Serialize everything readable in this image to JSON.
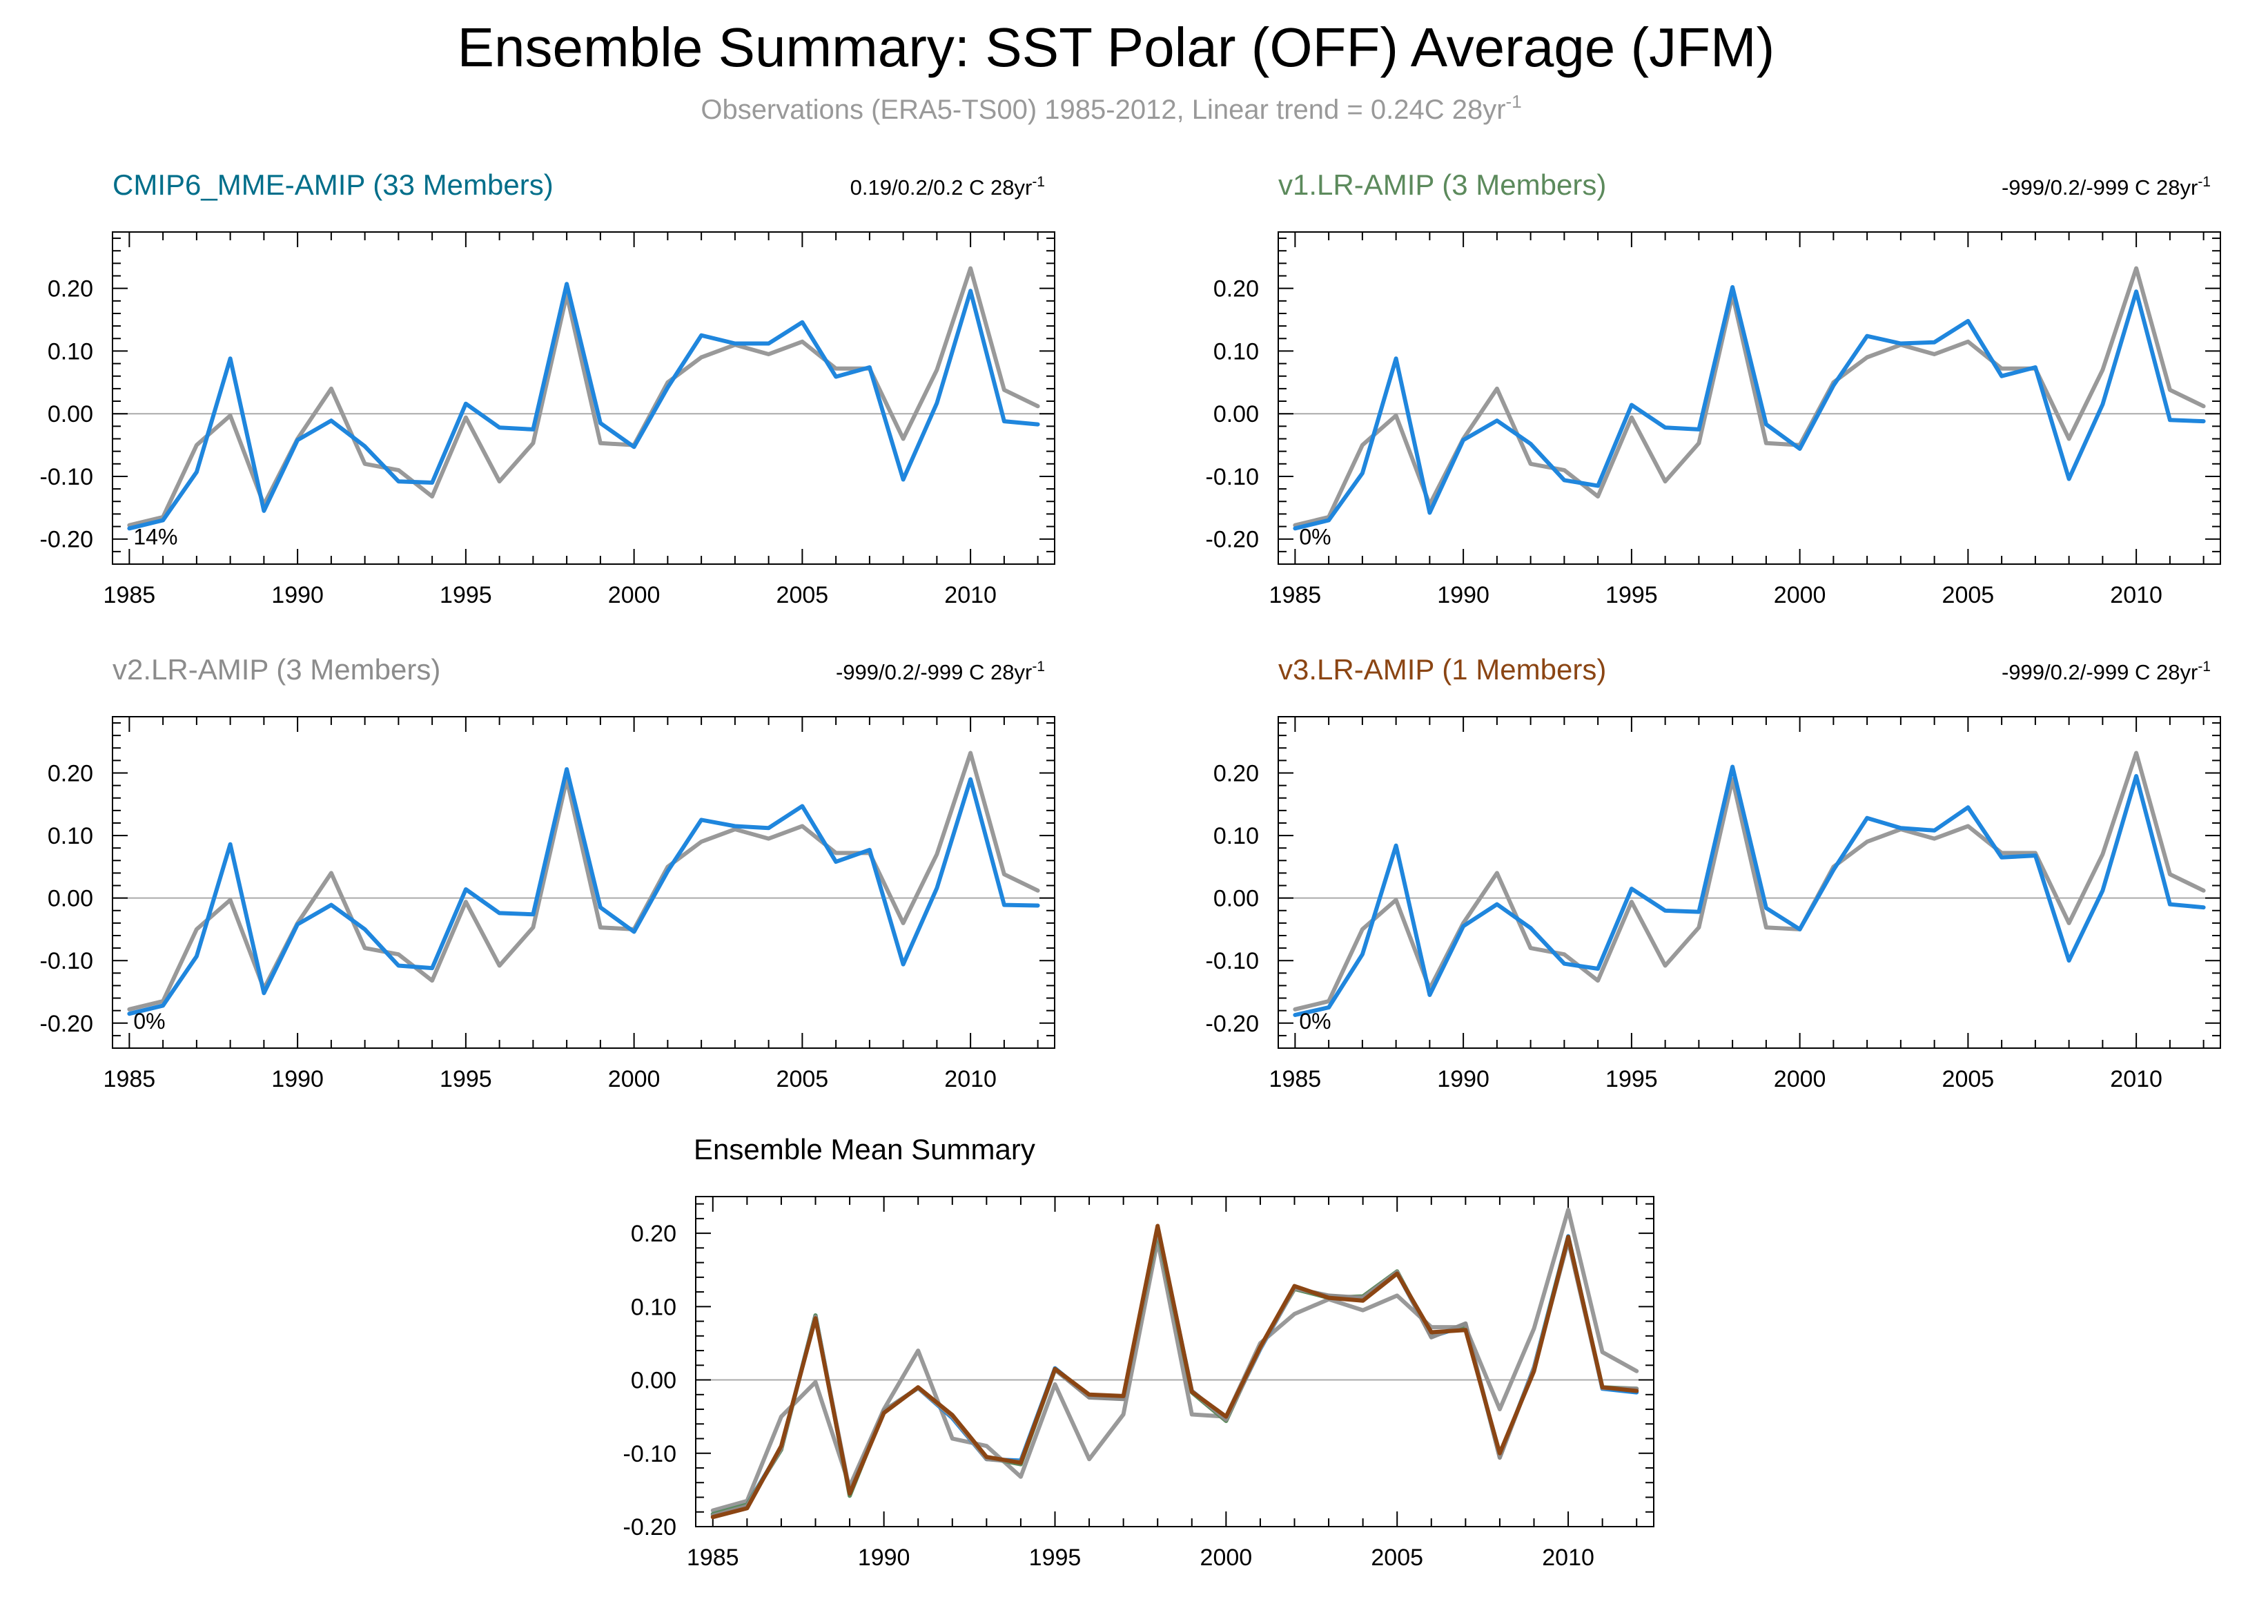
{
  "figure": {
    "title": "Ensemble Summary: SST Polar (OFF) Average (JFM)",
    "subtitle_main": "Observations (ERA5-TS00) 1985-2012, Linear trend = 0.24C 28yr",
    "subtitle_sup": "-1"
  },
  "colors": {
    "obs": "#999999",
    "model": "#1f86dd",
    "v3": "#8b4513",
    "cmip6_title": "#006e8a",
    "v1_title": "#5c8a5c",
    "v2_title": "#8c8c8c",
    "v3_title": "#8b4513",
    "mean_title": "#000000",
    "axis": "#000000",
    "zero_line": "#aaaaaa"
  },
  "chart_data": [
    {
      "type": "line",
      "id": "cmip6",
      "title": "CMIP6_MME-AMIP (33 Members)",
      "trend_label": "0.19/0.2/0.2 C 28yr",
      "trend_sup": "-1",
      "pct_label": "14%",
      "xlim": [
        1984.5,
        2012.5
      ],
      "ylim": [
        -0.24,
        0.29
      ],
      "xticks": [
        1985,
        1990,
        1995,
        2000,
        2005,
        2010
      ],
      "yticks": [
        -0.2,
        -0.1,
        0.0,
        0.1,
        0.2
      ],
      "ytick_labels": [
        "-0.20",
        "-0.10",
        "0.00",
        "0.10",
        "0.20"
      ],
      "xtick_labels": [
        "1985",
        "1990",
        "1995",
        "2000",
        "2005",
        "2010"
      ],
      "x": [
        1985,
        1986,
        1987,
        1988,
        1989,
        1990,
        1991,
        1992,
        1993,
        1994,
        1995,
        1996,
        1997,
        1998,
        1999,
        2000,
        2001,
        2002,
        2003,
        2004,
        2005,
        2006,
        2007,
        2008,
        2009,
        2010,
        2011,
        2012
      ],
      "series": [
        {
          "name": "Observations",
          "color_key": "obs",
          "values": [
            -0.178,
            -0.165,
            -0.05,
            -0.003,
            -0.145,
            -0.04,
            0.04,
            -0.08,
            -0.09,
            -0.132,
            -0.006,
            -0.108,
            -0.047,
            0.19,
            -0.047,
            -0.05,
            0.05,
            0.09,
            0.11,
            0.095,
            0.115,
            0.072,
            0.072,
            -0.04,
            0.07,
            0.232,
            0.038,
            0.012
          ]
        },
        {
          "name": "Ensemble",
          "color_key": "model",
          "values": [
            -0.183,
            -0.17,
            -0.093,
            0.088,
            -0.155,
            -0.042,
            -0.011,
            -0.052,
            -0.108,
            -0.11,
            0.016,
            -0.022,
            -0.025,
            0.207,
            -0.015,
            -0.053,
            0.042,
            0.125,
            0.112,
            0.112,
            0.146,
            0.059,
            0.074,
            -0.105,
            0.017,
            0.196,
            -0.012,
            -0.017
          ]
        }
      ]
    },
    {
      "type": "line",
      "id": "v1",
      "title": "v1.LR-AMIP (3 Members)",
      "trend_label": "-999/0.2/-999 C 28yr",
      "trend_sup": "-1",
      "pct_label": "0%",
      "xlim": [
        1984.5,
        2012.5
      ],
      "ylim": [
        -0.24,
        0.29
      ],
      "xticks": [
        1985,
        1990,
        1995,
        2000,
        2005,
        2010
      ],
      "yticks": [
        -0.2,
        -0.1,
        0.0,
        0.1,
        0.2
      ],
      "ytick_labels": [
        "-0.20",
        "-0.10",
        "0.00",
        "0.10",
        "0.20"
      ],
      "xtick_labels": [
        "1985",
        "1990",
        "1995",
        "2000",
        "2005",
        "2010"
      ],
      "x": [
        1985,
        1986,
        1987,
        1988,
        1989,
        1990,
        1991,
        1992,
        1993,
        1994,
        1995,
        1996,
        1997,
        1998,
        1999,
        2000,
        2001,
        2002,
        2003,
        2004,
        2005,
        2006,
        2007,
        2008,
        2009,
        2010,
        2011,
        2012
      ],
      "series": [
        {
          "name": "Observations",
          "color_key": "obs",
          "values": [
            -0.178,
            -0.165,
            -0.05,
            -0.003,
            -0.145,
            -0.04,
            0.04,
            -0.08,
            -0.09,
            -0.132,
            -0.006,
            -0.108,
            -0.047,
            0.19,
            -0.047,
            -0.05,
            0.05,
            0.09,
            0.11,
            0.095,
            0.115,
            0.072,
            0.072,
            -0.04,
            0.07,
            0.232,
            0.038,
            0.012
          ]
        },
        {
          "name": "Ensemble",
          "color_key": "model",
          "values": [
            -0.183,
            -0.17,
            -0.095,
            0.088,
            -0.158,
            -0.042,
            -0.011,
            -0.048,
            -0.106,
            -0.115,
            0.014,
            -0.022,
            -0.025,
            0.202,
            -0.017,
            -0.056,
            0.045,
            0.124,
            0.112,
            0.114,
            0.148,
            0.06,
            0.074,
            -0.104,
            0.015,
            0.195,
            -0.01,
            -0.012
          ]
        }
      ]
    },
    {
      "type": "line",
      "id": "v2",
      "title": "v2.LR-AMIP (3 Members)",
      "trend_label": "-999/0.2/-999 C 28yr",
      "trend_sup": "-1",
      "pct_label": "0%",
      "xlim": [
        1984.5,
        2012.5
      ],
      "ylim": [
        -0.24,
        0.29
      ],
      "xticks": [
        1985,
        1990,
        1995,
        2000,
        2005,
        2010
      ],
      "yticks": [
        -0.2,
        -0.1,
        0.0,
        0.1,
        0.2
      ],
      "ytick_labels": [
        "-0.20",
        "-0.10",
        "0.00",
        "0.10",
        "0.20"
      ],
      "xtick_labels": [
        "1985",
        "1990",
        "1995",
        "2000",
        "2005",
        "2010"
      ],
      "x": [
        1985,
        1986,
        1987,
        1988,
        1989,
        1990,
        1991,
        1992,
        1993,
        1994,
        1995,
        1996,
        1997,
        1998,
        1999,
        2000,
        2001,
        2002,
        2003,
        2004,
        2005,
        2006,
        2007,
        2008,
        2009,
        2010,
        2011,
        2012
      ],
      "series": [
        {
          "name": "Observations",
          "color_key": "obs",
          "values": [
            -0.178,
            -0.165,
            -0.05,
            -0.003,
            -0.145,
            -0.04,
            0.04,
            -0.08,
            -0.09,
            -0.132,
            -0.006,
            -0.108,
            -0.047,
            0.19,
            -0.047,
            -0.05,
            0.05,
            0.09,
            0.11,
            0.095,
            0.115,
            0.072,
            0.072,
            -0.04,
            0.07,
            0.232,
            0.038,
            0.012
          ]
        },
        {
          "name": "Ensemble",
          "color_key": "model",
          "values": [
            -0.185,
            -0.172,
            -0.093,
            0.086,
            -0.152,
            -0.042,
            -0.011,
            -0.05,
            -0.108,
            -0.112,
            0.014,
            -0.024,
            -0.026,
            0.206,
            -0.015,
            -0.054,
            0.043,
            0.125,
            0.115,
            0.112,
            0.147,
            0.058,
            0.077,
            -0.106,
            0.016,
            0.19,
            -0.011,
            -0.012
          ]
        }
      ]
    },
    {
      "type": "line",
      "id": "v3",
      "title": "v3.LR-AMIP (1 Members)",
      "trend_label": "-999/0.2/-999 C 28yr",
      "trend_sup": "-1",
      "pct_label": "0%",
      "xlim": [
        1984.5,
        2012.5
      ],
      "ylim": [
        -0.24,
        0.29
      ],
      "xticks": [
        1985,
        1990,
        1995,
        2000,
        2005,
        2010
      ],
      "yticks": [
        -0.2,
        -0.1,
        0.0,
        0.1,
        0.2
      ],
      "ytick_labels": [
        "-0.20",
        "-0.10",
        "0.00",
        "0.10",
        "0.20"
      ],
      "xtick_labels": [
        "1985",
        "1990",
        "1995",
        "2000",
        "2005",
        "2010"
      ],
      "x": [
        1985,
        1986,
        1987,
        1988,
        1989,
        1990,
        1991,
        1992,
        1993,
        1994,
        1995,
        1996,
        1997,
        1998,
        1999,
        2000,
        2001,
        2002,
        2003,
        2004,
        2005,
        2006,
        2007,
        2008,
        2009,
        2010,
        2011,
        2012
      ],
      "series": [
        {
          "name": "Observations",
          "color_key": "obs",
          "values": [
            -0.178,
            -0.165,
            -0.05,
            -0.003,
            -0.145,
            -0.04,
            0.04,
            -0.08,
            -0.09,
            -0.132,
            -0.006,
            -0.108,
            -0.047,
            0.19,
            -0.047,
            -0.05,
            0.05,
            0.09,
            0.11,
            0.095,
            0.115,
            0.072,
            0.072,
            -0.04,
            0.07,
            0.232,
            0.038,
            0.012
          ]
        },
        {
          "name": "Ensemble",
          "color_key": "model",
          "values": [
            -0.187,
            -0.175,
            -0.09,
            0.084,
            -0.155,
            -0.045,
            -0.01,
            -0.048,
            -0.105,
            -0.113,
            0.015,
            -0.02,
            -0.022,
            0.21,
            -0.016,
            -0.05,
            0.045,
            0.128,
            0.112,
            0.108,
            0.145,
            0.065,
            0.068,
            -0.1,
            0.012,
            0.195,
            -0.01,
            -0.015
          ]
        }
      ]
    },
    {
      "type": "line",
      "id": "mean",
      "title": "Ensemble Mean Summary",
      "xlim": [
        1984.5,
        2012.5
      ],
      "ylim": [
        -0.2,
        0.25
      ],
      "xticks": [
        1985,
        1990,
        1995,
        2000,
        2005,
        2010
      ],
      "yticks": [
        -0.2,
        -0.1,
        0.0,
        0.1,
        0.2
      ],
      "ytick_labels": [
        "-0.20",
        "-0.10",
        "0.00",
        "0.10",
        "0.20"
      ],
      "xtick_labels": [
        "1985",
        "1990",
        "1995",
        "2000",
        "2005",
        "2010"
      ],
      "x": [
        1985,
        1986,
        1987,
        1988,
        1989,
        1990,
        1991,
        1992,
        1993,
        1994,
        1995,
        1996,
        1997,
        1998,
        1999,
        2000,
        2001,
        2002,
        2003,
        2004,
        2005,
        2006,
        2007,
        2008,
        2009,
        2010,
        2011,
        2012
      ],
      "series": [
        {
          "name": "Observations",
          "color_key": "obs",
          "values": [
            -0.178,
            -0.165,
            -0.05,
            -0.003,
            -0.145,
            -0.04,
            0.04,
            -0.08,
            -0.09,
            -0.132,
            -0.006,
            -0.108,
            -0.047,
            0.19,
            -0.047,
            -0.05,
            0.05,
            0.09,
            0.11,
            0.095,
            0.115,
            0.072,
            0.072,
            -0.04,
            0.07,
            0.232,
            0.038,
            0.012
          ]
        },
        {
          "name": "CMIP6_MME-AMIP",
          "color_key": "model",
          "values": [
            -0.183,
            -0.17,
            -0.093,
            0.088,
            -0.155,
            -0.042,
            -0.011,
            -0.052,
            -0.108,
            -0.11,
            0.016,
            -0.022,
            -0.025,
            0.207,
            -0.015,
            -0.053,
            0.042,
            0.125,
            0.112,
            0.112,
            0.146,
            0.059,
            0.074,
            -0.105,
            0.017,
            0.196,
            -0.012,
            -0.017
          ]
        },
        {
          "name": "v1.LR-AMIP",
          "color_key": "v1_title",
          "values": [
            -0.183,
            -0.17,
            -0.095,
            0.088,
            -0.158,
            -0.042,
            -0.011,
            -0.048,
            -0.106,
            -0.115,
            0.014,
            -0.022,
            -0.025,
            0.202,
            -0.017,
            -0.056,
            0.045,
            0.124,
            0.112,
            0.114,
            0.148,
            0.06,
            0.074,
            -0.104,
            0.015,
            0.195,
            -0.01,
            -0.012
          ]
        },
        {
          "name": "v2.LR-AMIP",
          "color_key": "v2_title",
          "values": [
            -0.185,
            -0.172,
            -0.093,
            0.086,
            -0.152,
            -0.042,
            -0.011,
            -0.05,
            -0.108,
            -0.112,
            0.014,
            -0.024,
            -0.026,
            0.206,
            -0.015,
            -0.054,
            0.043,
            0.125,
            0.115,
            0.112,
            0.147,
            0.058,
            0.077,
            -0.106,
            0.016,
            0.19,
            -0.011,
            -0.012
          ]
        },
        {
          "name": "v3.LR-AMIP",
          "color_key": "v3",
          "values": [
            -0.187,
            -0.175,
            -0.09,
            0.084,
            -0.155,
            -0.045,
            -0.01,
            -0.048,
            -0.105,
            -0.113,
            0.015,
            -0.02,
            -0.022,
            0.21,
            -0.016,
            -0.05,
            0.045,
            0.128,
            0.112,
            0.108,
            0.145,
            0.065,
            0.068,
            -0.1,
            0.012,
            0.195,
            -0.01,
            -0.015
          ]
        }
      ]
    }
  ]
}
